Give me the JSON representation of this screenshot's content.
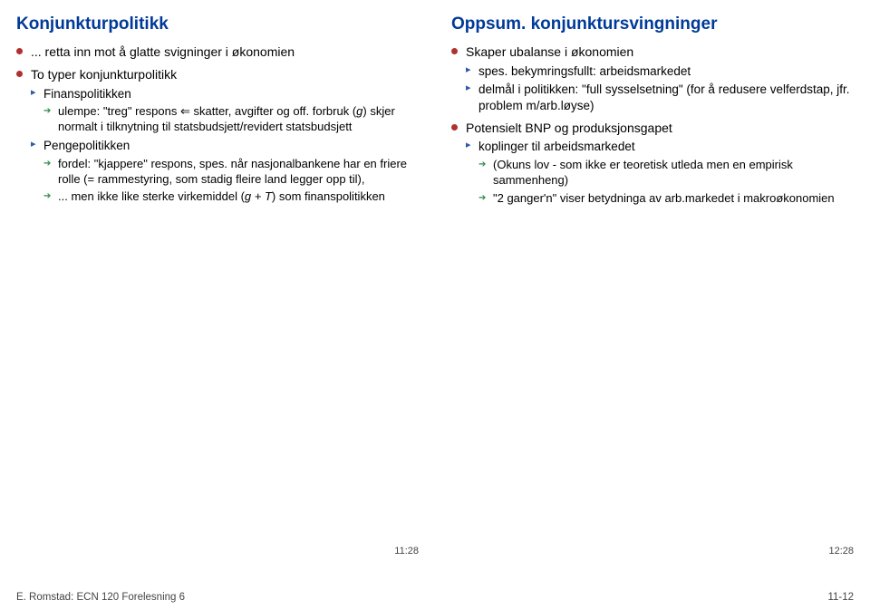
{
  "left": {
    "title": "Konjunkturpolitikk",
    "b1": "... retta inn mot å glatte svigninger i økonomien",
    "b2": "To typer konjunkturpolitikk",
    "finans": "Finanspolitikken",
    "finans_ulempe_pre": "ulempe: \"treg\" respons ",
    "finans_ulempe_post": " skatter, avgifter og off. forbruk (",
    "finans_ulempe_g": "g",
    "finans_ulempe_post2": ") skjer normalt i tilknytning til statsbudsjett/revidert statsbudsjett",
    "penge": "Pengepolitikken",
    "penge_fordel": "fordel: \"kjappere\" respons, spes. når nasjonal­bankene har en friere rolle (= rammestyring, som stadig fleire land legger opp til),",
    "penge_men_pre": "... men ikke like sterke virkemiddel (",
    "penge_men_gt": "g + T",
    "penge_men_post": ") som finanspolitikken",
    "slidenum": "11:28"
  },
  "right": {
    "title": "Oppsum. konjunktursvingninger",
    "b1": "Skaper ubalanse i økonomien",
    "b1a": "spes. bekymringsfullt: arbeidsmarkedet",
    "b1b": "delmål i politikken: \"full sysselsetning\" (for å redusere velferdstap, jfr. problem m/arb.løyse)",
    "b2": "Potensielt BNP og produksjonsgapet",
    "b2a": "koplinger til arbeidsmarkedet",
    "b2a1": "(Okuns lov - som ikke er teoretisk utleda men en empirisk sammenheng)",
    "b2a2": "\"2 ganger'n\" viser betydninga av arb.markedet i makroøkonomien",
    "slidenum": "12:28"
  },
  "footer": {
    "left": "E. Romstad: ECN 120 Forelesning 6",
    "right": "11-12"
  }
}
